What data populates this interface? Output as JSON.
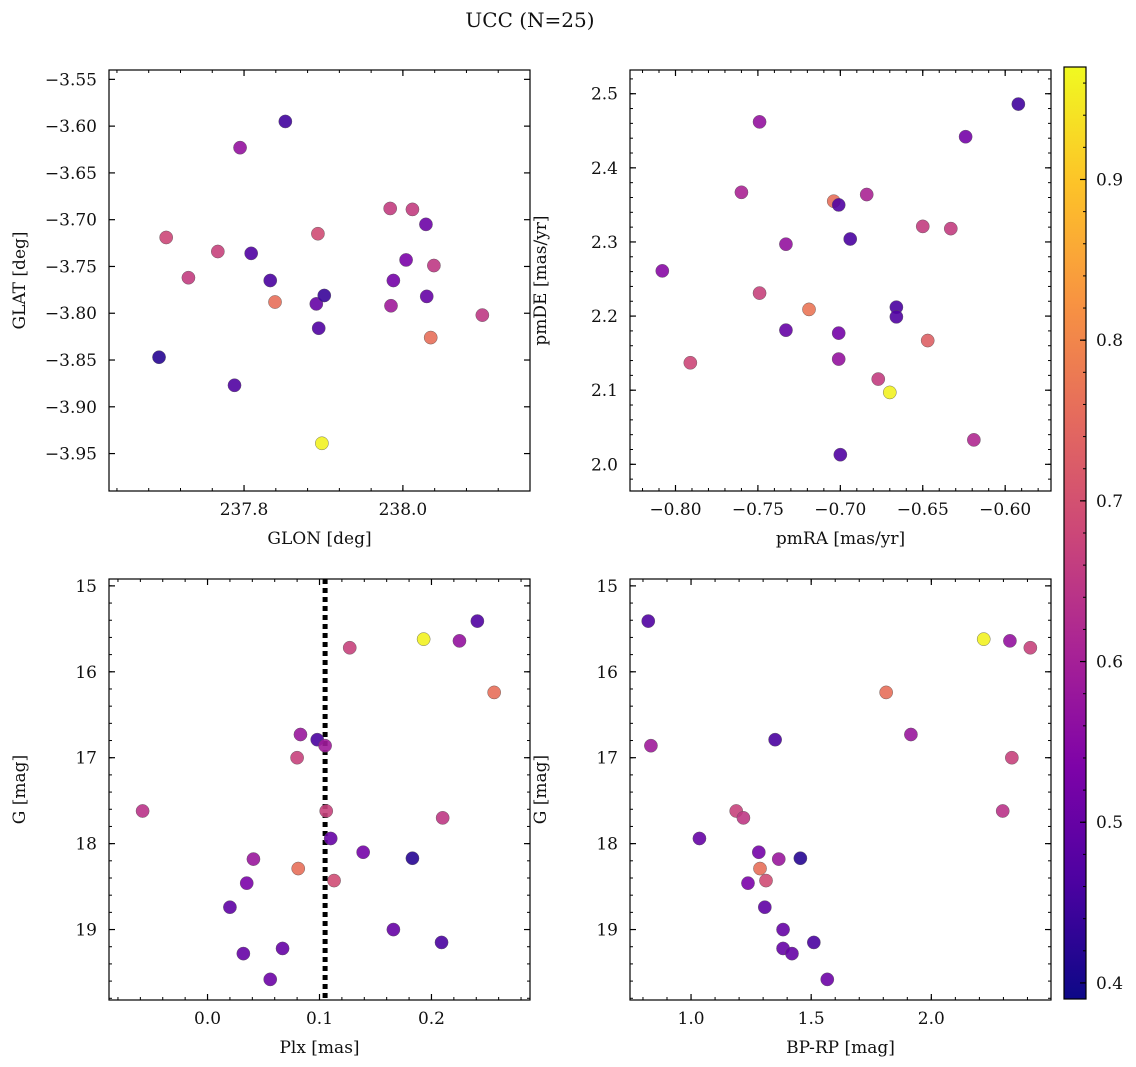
{
  "figure": {
    "title": "UCC (N=25)",
    "colorbar": {
      "colormap": "plasma",
      "range": [
        0.39,
        0.97
      ],
      "ticks": [
        "0.4",
        "0.5",
        "0.6",
        "0.7",
        "0.8",
        "0.9"
      ]
    }
  },
  "chart_data": [
    {
      "type": "scatter",
      "xlabel": "GLON [deg]",
      "ylabel": "GLAT [deg]",
      "xlim": [
        237.63,
        238.16
      ],
      "ylim": [
        -3.99,
        -3.54
      ],
      "y_inverted": false,
      "xticks": [
        "237.8",
        "238.0"
      ],
      "yticks": [
        "−3.55",
        "−3.60",
        "−3.65",
        "−3.70",
        "−3.75",
        "−3.80",
        "−3.85",
        "−3.90",
        "−3.95"
      ],
      "vline": null,
      "points": [
        {
          "x": 237.693,
          "y": -3.847,
          "c": 0.42
        },
        {
          "x": 237.702,
          "y": -3.719,
          "c": 0.68
        },
        {
          "x": 237.73,
          "y": -3.762,
          "c": 0.66
        },
        {
          "x": 237.767,
          "y": -3.734,
          "c": 0.67
        },
        {
          "x": 237.788,
          "y": -3.877,
          "c": 0.47
        },
        {
          "x": 237.795,
          "y": -3.623,
          "c": 0.57
        },
        {
          "x": 237.809,
          "y": -3.736,
          "c": 0.47
        },
        {
          "x": 237.833,
          "y": -3.765,
          "c": 0.46
        },
        {
          "x": 237.839,
          "y": -3.788,
          "c": 0.76
        },
        {
          "x": 237.852,
          "y": -3.595,
          "c": 0.45
        },
        {
          "x": 237.891,
          "y": -3.79,
          "c": 0.5
        },
        {
          "x": 237.893,
          "y": -3.715,
          "c": 0.69
        },
        {
          "x": 237.894,
          "y": -3.816,
          "c": 0.47
        },
        {
          "x": 237.898,
          "y": -3.939,
          "c": 0.96
        },
        {
          "x": 237.901,
          "y": -3.781,
          "c": 0.44
        },
        {
          "x": 237.984,
          "y": -3.688,
          "c": 0.66
        },
        {
          "x": 237.985,
          "y": -3.792,
          "c": 0.59
        },
        {
          "x": 237.988,
          "y": -3.765,
          "c": 0.52
        },
        {
          "x": 238.004,
          "y": -3.743,
          "c": 0.53
        },
        {
          "x": 238.012,
          "y": -3.689,
          "c": 0.66
        },
        {
          "x": 238.029,
          "y": -3.705,
          "c": 0.51
        },
        {
          "x": 238.03,
          "y": -3.782,
          "c": 0.5
        },
        {
          "x": 238.035,
          "y": -3.826,
          "c": 0.76
        },
        {
          "x": 238.039,
          "y": -3.749,
          "c": 0.65
        },
        {
          "x": 238.1,
          "y": -3.802,
          "c": 0.65
        }
      ]
    },
    {
      "type": "scatter",
      "xlabel": "pmRA [mas/yr]",
      "ylabel": "pmDE [mas/yr]",
      "xlim": [
        -0.8276,
        -0.5722
      ],
      "ylim": [
        1.964,
        2.532
      ],
      "y_inverted": false,
      "xticks": [
        "−0.80",
        "−0.75",
        "−0.70",
        "−0.65",
        "−0.60"
      ],
      "yticks": [
        "2.0",
        "2.1",
        "2.2",
        "2.3",
        "2.4",
        "2.5"
      ],
      "vline": null,
      "points": [
        {
          "x": -0.808,
          "y": 2.261,
          "c": 0.55
        },
        {
          "x": -0.791,
          "y": 2.137,
          "c": 0.68
        },
        {
          "x": -0.76,
          "y": 2.367,
          "c": 0.61
        },
        {
          "x": -0.749,
          "y": 2.462,
          "c": 0.57
        },
        {
          "x": -0.749,
          "y": 2.231,
          "c": 0.67
        },
        {
          "x": -0.733,
          "y": 2.297,
          "c": 0.57
        },
        {
          "x": -0.733,
          "y": 2.181,
          "c": 0.5
        },
        {
          "x": -0.719,
          "y": 2.209,
          "c": 0.77
        },
        {
          "x": -0.704,
          "y": 2.355,
          "c": 0.76
        },
        {
          "x": -0.701,
          "y": 2.35,
          "c": 0.47
        },
        {
          "x": -0.701,
          "y": 2.177,
          "c": 0.52
        },
        {
          "x": -0.701,
          "y": 2.142,
          "c": 0.57
        },
        {
          "x": -0.7,
          "y": 2.013,
          "c": 0.47
        },
        {
          "x": -0.694,
          "y": 2.304,
          "c": 0.46
        },
        {
          "x": -0.684,
          "y": 2.364,
          "c": 0.61
        },
        {
          "x": -0.677,
          "y": 2.115,
          "c": 0.66
        },
        {
          "x": -0.67,
          "y": 2.097,
          "c": 0.96
        },
        {
          "x": -0.666,
          "y": 2.212,
          "c": 0.46
        },
        {
          "x": -0.666,
          "y": 2.199,
          "c": 0.47
        },
        {
          "x": -0.647,
          "y": 2.167,
          "c": 0.73
        },
        {
          "x": -0.65,
          "y": 2.321,
          "c": 0.66
        },
        {
          "x": -0.633,
          "y": 2.318,
          "c": 0.66
        },
        {
          "x": -0.624,
          "y": 2.442,
          "c": 0.52
        },
        {
          "x": -0.619,
          "y": 2.033,
          "c": 0.62
        },
        {
          "x": -0.592,
          "y": 2.486,
          "c": 0.45
        }
      ]
    },
    {
      "type": "scatter",
      "xlabel": "Plx [mas]",
      "ylabel": "G [mag]",
      "xlim": [
        -0.088,
        0.288
      ],
      "ylim": [
        14.92,
        19.82
      ],
      "y_inverted": true,
      "xticks": [
        "0.0",
        "0.1",
        "0.2"
      ],
      "yticks": [
        "15",
        "16",
        "17",
        "18",
        "19"
      ],
      "vline": 0.105,
      "points": [
        {
          "x": -0.058,
          "y": 17.62,
          "c": 0.64
        },
        {
          "x": 0.02,
          "y": 18.74,
          "c": 0.49
        },
        {
          "x": 0.032,
          "y": 19.28,
          "c": 0.5
        },
        {
          "x": 0.035,
          "y": 18.46,
          "c": 0.53
        },
        {
          "x": 0.041,
          "y": 18.18,
          "c": 0.58
        },
        {
          "x": 0.056,
          "y": 19.58,
          "c": 0.51
        },
        {
          "x": 0.067,
          "y": 19.22,
          "c": 0.5
        },
        {
          "x": 0.08,
          "y": 17.0,
          "c": 0.67
        },
        {
          "x": 0.081,
          "y": 18.29,
          "c": 0.76
        },
        {
          "x": 0.083,
          "y": 16.73,
          "c": 0.58
        },
        {
          "x": 0.098,
          "y": 16.79,
          "c": 0.46
        },
        {
          "x": 0.105,
          "y": 16.86,
          "c": 0.59
        },
        {
          "x": 0.106,
          "y": 17.62,
          "c": 0.67
        },
        {
          "x": 0.11,
          "y": 17.94,
          "c": 0.5
        },
        {
          "x": 0.113,
          "y": 18.43,
          "c": 0.69
        },
        {
          "x": 0.127,
          "y": 15.72,
          "c": 0.67
        },
        {
          "x": 0.139,
          "y": 18.1,
          "c": 0.52
        },
        {
          "x": 0.166,
          "y": 19.0,
          "c": 0.5
        },
        {
          "x": 0.183,
          "y": 18.17,
          "c": 0.42
        },
        {
          "x": 0.193,
          "y": 15.62,
          "c": 0.96
        },
        {
          "x": 0.209,
          "y": 19.15,
          "c": 0.46
        },
        {
          "x": 0.21,
          "y": 17.7,
          "c": 0.65
        },
        {
          "x": 0.225,
          "y": 15.64,
          "c": 0.57
        },
        {
          "x": 0.241,
          "y": 15.41,
          "c": 0.47
        },
        {
          "x": 0.256,
          "y": 16.24,
          "c": 0.76
        }
      ]
    },
    {
      "type": "scatter",
      "xlabel": "BP-RP [mag]",
      "ylabel": "G [mag]",
      "xlim": [
        0.746,
        2.498
      ],
      "ylim": [
        14.92,
        19.82
      ],
      "y_inverted": true,
      "xticks": [
        "1.0",
        "1.5",
        "2.0"
      ],
      "yticks": [
        "15",
        "16",
        "17",
        "18",
        "19"
      ],
      "vline": null,
      "points": [
        {
          "x": 0.822,
          "y": 15.41,
          "c": 0.47
        },
        {
          "x": 0.833,
          "y": 16.86,
          "c": 0.59
        },
        {
          "x": 1.035,
          "y": 17.94,
          "c": 0.5
        },
        {
          "x": 1.188,
          "y": 17.62,
          "c": 0.67
        },
        {
          "x": 1.218,
          "y": 17.7,
          "c": 0.65
        },
        {
          "x": 1.237,
          "y": 18.46,
          "c": 0.53
        },
        {
          "x": 1.282,
          "y": 18.1,
          "c": 0.52
        },
        {
          "x": 1.287,
          "y": 18.29,
          "c": 0.76
        },
        {
          "x": 1.307,
          "y": 18.74,
          "c": 0.49
        },
        {
          "x": 1.312,
          "y": 18.43,
          "c": 0.69
        },
        {
          "x": 1.35,
          "y": 16.79,
          "c": 0.46
        },
        {
          "x": 1.365,
          "y": 18.18,
          "c": 0.58
        },
        {
          "x": 1.383,
          "y": 19.0,
          "c": 0.5
        },
        {
          "x": 1.383,
          "y": 19.22,
          "c": 0.5
        },
        {
          "x": 1.42,
          "y": 19.28,
          "c": 0.5
        },
        {
          "x": 1.455,
          "y": 18.17,
          "c": 0.42
        },
        {
          "x": 1.511,
          "y": 19.15,
          "c": 0.46
        },
        {
          "x": 1.567,
          "y": 19.58,
          "c": 0.51
        },
        {
          "x": 1.812,
          "y": 16.24,
          "c": 0.76
        },
        {
          "x": 1.915,
          "y": 16.73,
          "c": 0.58
        },
        {
          "x": 2.218,
          "y": 15.62,
          "c": 0.96
        },
        {
          "x": 2.297,
          "y": 17.62,
          "c": 0.64
        },
        {
          "x": 2.327,
          "y": 15.64,
          "c": 0.57
        },
        {
          "x": 2.335,
          "y": 17.0,
          "c": 0.67
        },
        {
          "x": 2.412,
          "y": 15.72,
          "c": 0.67
        }
      ]
    }
  ]
}
